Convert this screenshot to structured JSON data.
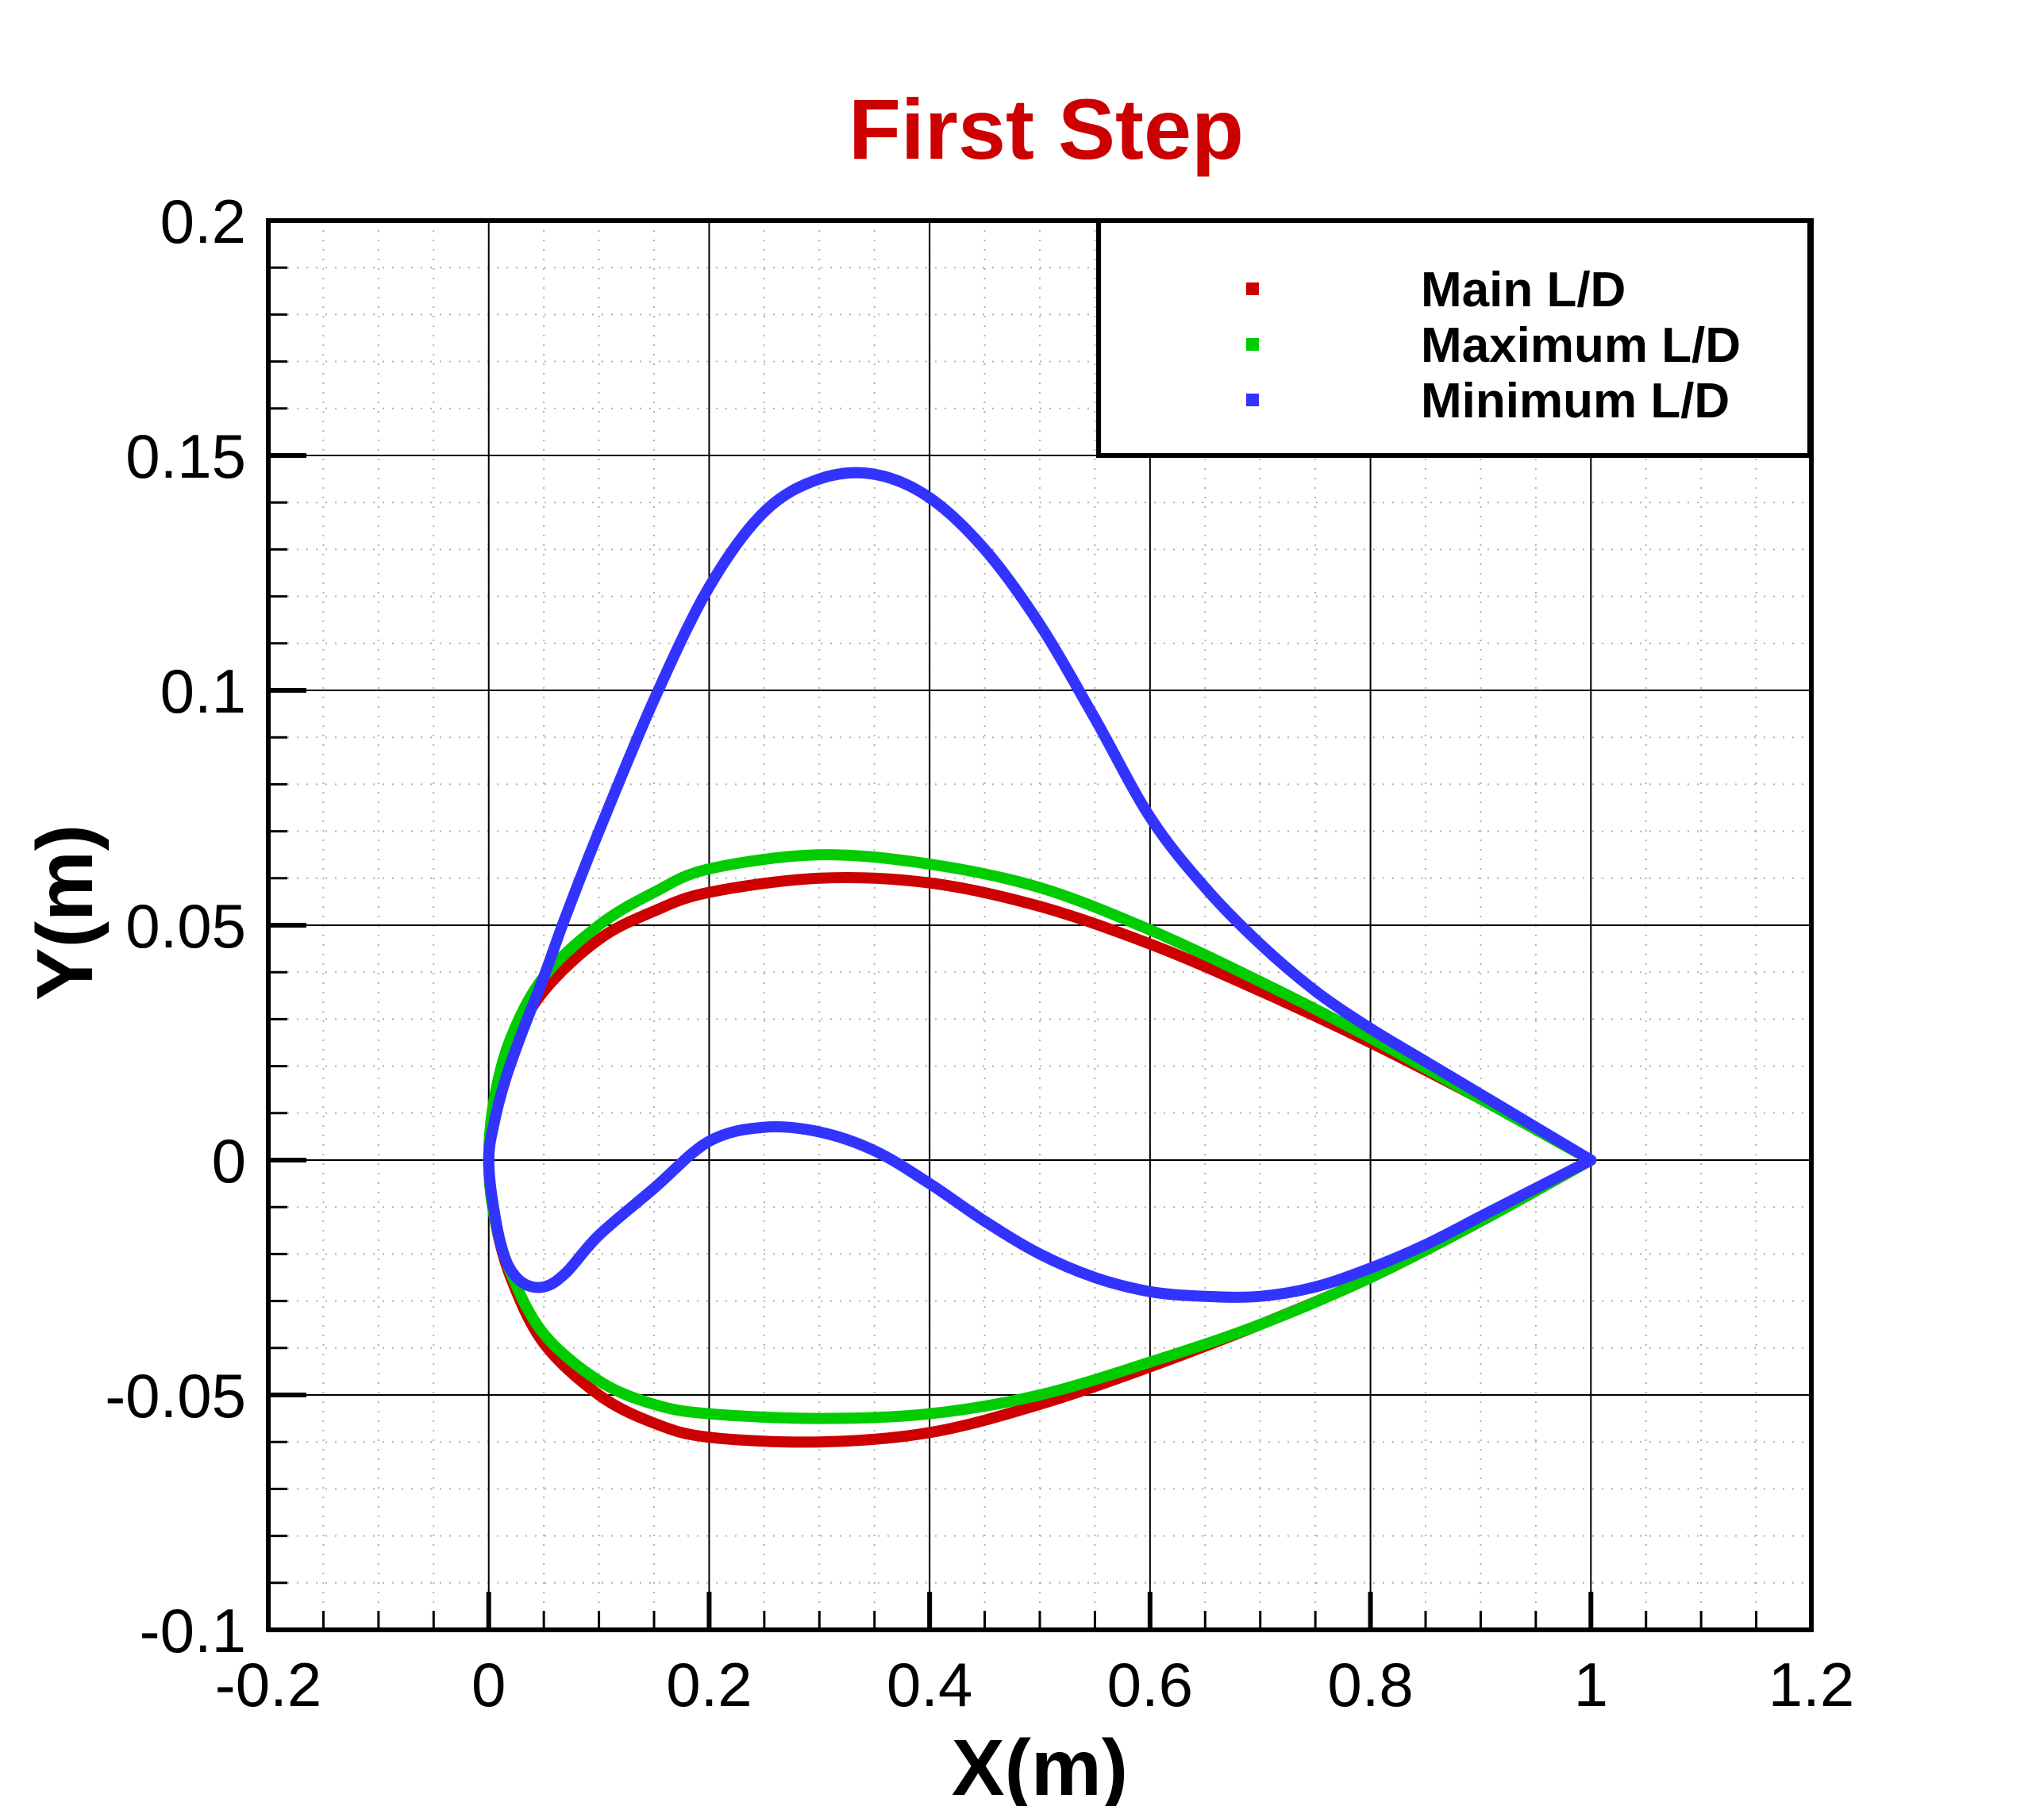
{
  "chart_data": {
    "type": "line",
    "title": "First Step",
    "title_color": "#cc0000",
    "xlabel": "X(m)",
    "ylabel": "Y(m)",
    "xlim": [
      -0.2,
      1.2
    ],
    "ylim": [
      -0.1,
      0.2
    ],
    "x_ticks": [
      -0.2,
      0,
      0.2,
      0.4,
      0.6,
      0.8,
      1,
      1.2
    ],
    "x_tick_labels": [
      "-0.2",
      "0",
      "0.2",
      "0.4",
      "0.6",
      "0.8",
      "1",
      "1.2"
    ],
    "y_ticks": [
      -0.1,
      -0.05,
      0,
      0.05,
      0.1,
      0.15,
      0.2
    ],
    "y_tick_labels": [
      "-0.1",
      "-0.05",
      "0",
      "0.05",
      "0.1",
      "0.15",
      "0.2"
    ],
    "grid": true,
    "minor_grid": true,
    "legend_position": "top-right",
    "series": [
      {
        "name": "Main L/D",
        "color": "#cc0000",
        "x": [
          1.0,
          0.9,
          0.8,
          0.7,
          0.6,
          0.5,
          0.4,
          0.3,
          0.2,
          0.15,
          0.1,
          0.05,
          0.02,
          0.005,
          0.0,
          0.005,
          0.02,
          0.05,
          0.1,
          0.15,
          0.2,
          0.3,
          0.4,
          0.5,
          0.6,
          0.7,
          0.8,
          0.9,
          1.0
        ],
        "y": [
          0.0,
          0.013,
          0.025,
          0.036,
          0.046,
          0.054,
          0.059,
          0.06,
          0.057,
          0.053,
          0.047,
          0.036,
          0.024,
          0.012,
          0.0,
          -0.012,
          -0.025,
          -0.039,
          -0.05,
          -0.056,
          -0.059,
          -0.06,
          -0.058,
          -0.052,
          -0.044,
          -0.035,
          -0.025,
          -0.013,
          0.0
        ]
      },
      {
        "name": "Maximum L/D",
        "color": "#00cc00",
        "x": [
          1.0,
          0.9,
          0.8,
          0.7,
          0.6,
          0.5,
          0.4,
          0.3,
          0.2,
          0.15,
          0.1,
          0.05,
          0.02,
          0.005,
          0.0,
          0.005,
          0.02,
          0.05,
          0.1,
          0.15,
          0.2,
          0.3,
          0.4,
          0.5,
          0.6,
          0.7,
          0.8,
          0.9,
          1.0
        ],
        "y": [
          0.0,
          0.013,
          0.026,
          0.038,
          0.049,
          0.058,
          0.063,
          0.065,
          0.062,
          0.057,
          0.05,
          0.039,
          0.026,
          0.013,
          0.0,
          -0.012,
          -0.024,
          -0.037,
          -0.047,
          -0.052,
          -0.054,
          -0.055,
          -0.054,
          -0.05,
          -0.043,
          -0.035,
          -0.025,
          -0.013,
          0.0
        ]
      },
      {
        "name": "Minimum L/D",
        "color": "#3333ff",
        "x": [
          1.0,
          0.95,
          0.9,
          0.85,
          0.8,
          0.75,
          0.7,
          0.65,
          0.6,
          0.55,
          0.5,
          0.45,
          0.4,
          0.35,
          0.3,
          0.25,
          0.2,
          0.15,
          0.1,
          0.07,
          0.05,
          0.03,
          0.015,
          0.005,
          0.0,
          0.005,
          0.015,
          0.03,
          0.05,
          0.07,
          0.1,
          0.15,
          0.2,
          0.25,
          0.3,
          0.35,
          0.4,
          0.45,
          0.5,
          0.55,
          0.6,
          0.65,
          0.7,
          0.75,
          0.8,
          0.85,
          0.9,
          0.95,
          1.0
        ],
        "y": [
          0.0,
          0.007,
          0.014,
          0.021,
          0.028,
          0.036,
          0.046,
          0.058,
          0.073,
          0.094,
          0.114,
          0.13,
          0.141,
          0.146,
          0.145,
          0.138,
          0.122,
          0.098,
          0.07,
          0.052,
          0.039,
          0.027,
          0.017,
          0.008,
          0.0,
          -0.011,
          -0.021,
          -0.026,
          -0.027,
          -0.024,
          -0.016,
          -0.006,
          0.004,
          0.007,
          0.006,
          0.002,
          -0.005,
          -0.013,
          -0.02,
          -0.025,
          -0.028,
          -0.029,
          -0.029,
          -0.027,
          -0.023,
          -0.018,
          -0.012,
          -0.006,
          0.0
        ]
      }
    ]
  }
}
